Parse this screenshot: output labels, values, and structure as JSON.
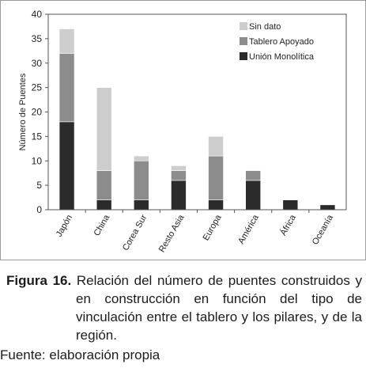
{
  "chart_data": {
    "type": "bar",
    "stacked": true,
    "categories": [
      "Japón",
      "China",
      "Corea Sur",
      "Resto Asia",
      "Europa",
      "América",
      "África",
      "Oceanía"
    ],
    "series": [
      {
        "name": "Unión Monolítica",
        "color": "#2b2b2b",
        "values": [
          18,
          2,
          2,
          6,
          2,
          6,
          2,
          1
        ]
      },
      {
        "name": "Tablero Apoyado",
        "color": "#8c8c8c",
        "values": [
          14,
          6,
          8,
          2,
          9,
          2,
          0,
          0
        ]
      },
      {
        "name": "Sin dato",
        "color": "#cdcdcd",
        "values": [
          5,
          17,
          1,
          1,
          4,
          0,
          0,
          0
        ]
      }
    ],
    "xlabel": "",
    "ylabel": "Número de Puentes",
    "ylim": [
      0,
      40
    ],
    "yticks": [
      0,
      5,
      10,
      15,
      20,
      25,
      30,
      35,
      40
    ],
    "legend_position": "top-right",
    "legend_order": [
      "Sin dato",
      "Tablero Apoyado",
      "Unión Monolítica"
    ],
    "grid": false,
    "frame_color": "#9a9a9a"
  },
  "caption": {
    "label": "Figura 16.",
    "text": " Relación del número de puentes construidos y en construcción en función del tipo de vinculación entre el tablero y los pilares, y de la región."
  },
  "source": "Fuente: elaboración propia"
}
